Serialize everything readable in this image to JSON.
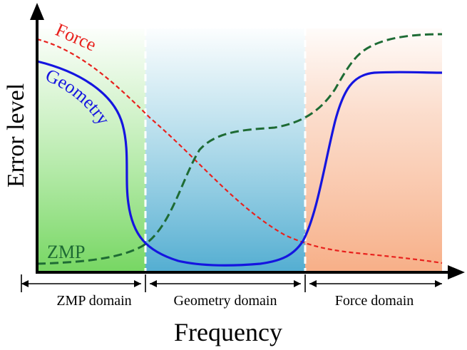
{
  "axes": {
    "y_label": "Error level",
    "x_label": "Frequency"
  },
  "curve_labels": {
    "force": "Force",
    "geometry": "Geometry",
    "zmp": "ZMP"
  },
  "domains": [
    {
      "label": "ZMP domain"
    },
    {
      "label": "Geometry domain"
    },
    {
      "label": "Force domain"
    }
  ],
  "colors": {
    "force_curve": "#e8211d",
    "geometry_curve": "#1515e0",
    "zmp_curve": "#1e6b34",
    "zmp_domain_fill": "#7fdc6a",
    "geometry_domain_fill": "#5bb4d4",
    "force_domain_fill": "#f7b38e",
    "axis": "#000000"
  }
}
